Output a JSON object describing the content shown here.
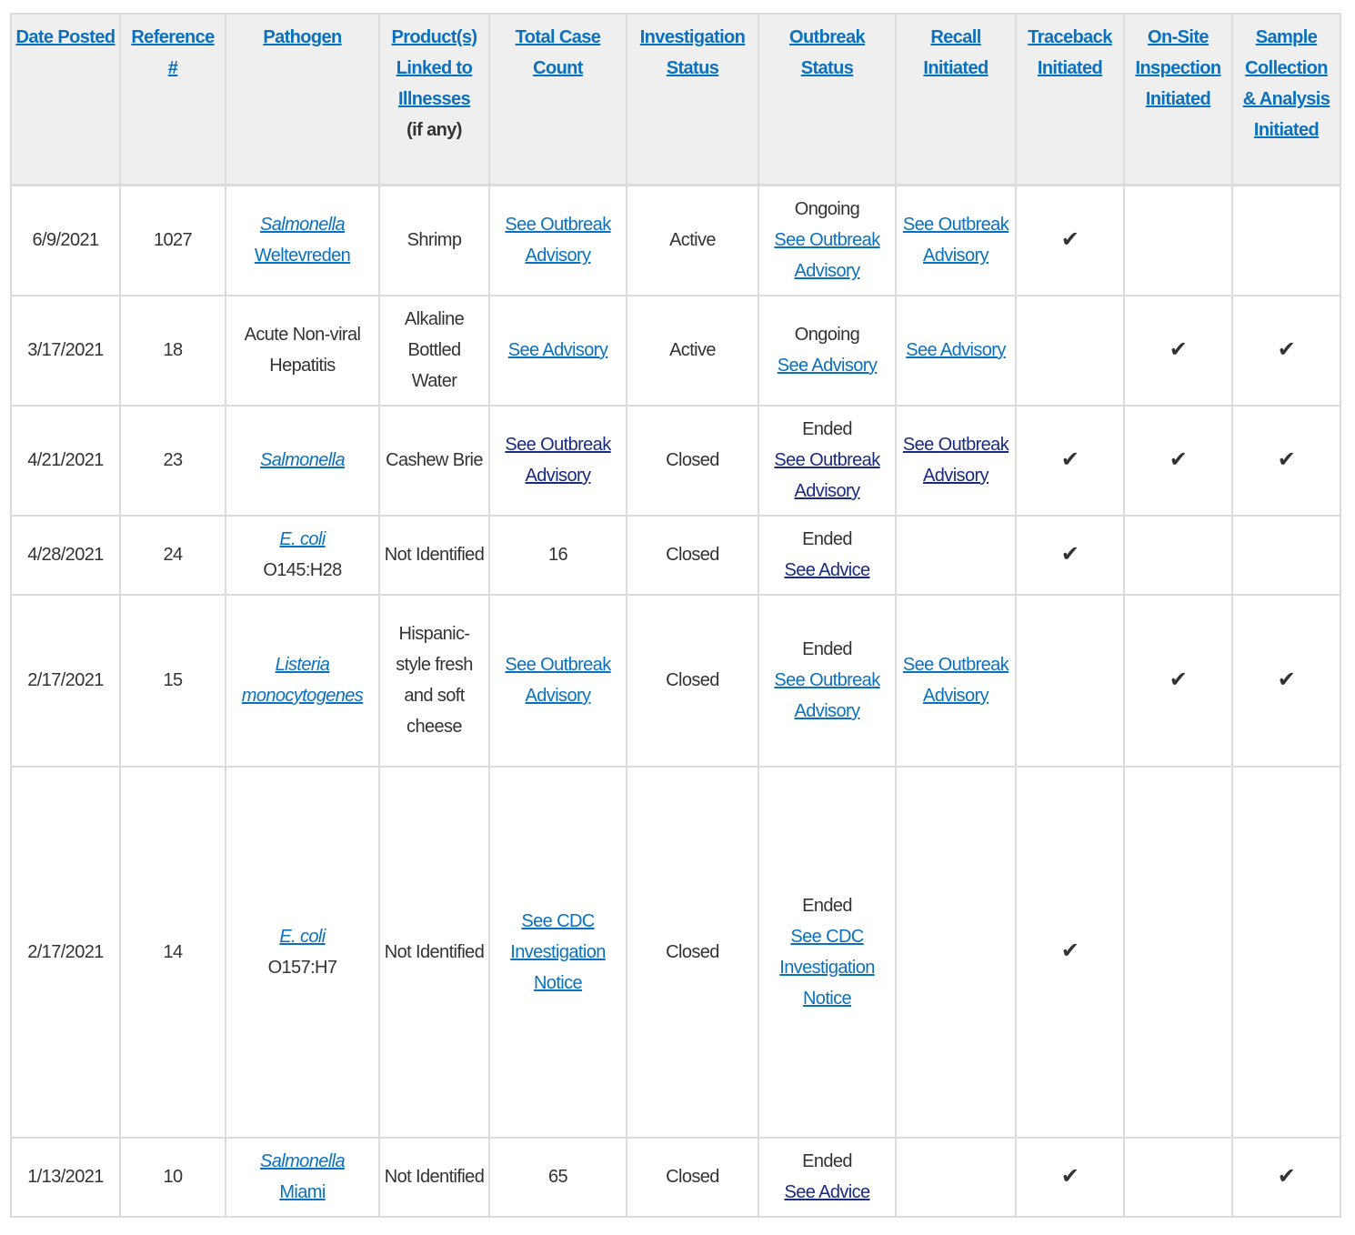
{
  "colors": {
    "link": "#0a71c0",
    "visited_link": "#1a2a80",
    "header_bg": "#efefef",
    "border": "#dcdcdc",
    "text": "#333333"
  },
  "check_icon": "✔",
  "headers": [
    {
      "link": "Date Posted"
    },
    {
      "link": "Reference #"
    },
    {
      "link": "Pathogen"
    },
    {
      "link": "Product(s) Linked to Illnesses",
      "note": "(if any)"
    },
    {
      "link": "Total Case Count"
    },
    {
      "link": "Investigation Status"
    },
    {
      "link": "Outbreak Status"
    },
    {
      "link": "Recall Initiated"
    },
    {
      "link": "Traceback Initiated"
    },
    {
      "link": "On-Site Inspection Initiated"
    },
    {
      "link": "Sample Collection & Analysis Initiated"
    }
  ],
  "rows": [
    {
      "date": "6/9/2021",
      "ref": "1027",
      "pathogen": [
        {
          "text": "Salmonella",
          "link": true,
          "italic": true
        },
        {
          "text": "Weltevreden",
          "link": true
        }
      ],
      "product": [
        {
          "text": "Shrimp"
        }
      ],
      "cases": [
        {
          "text": "See Outbreak Advisory",
          "link": true
        }
      ],
      "investigation": "Active",
      "outbreak": [
        {
          "text": "Ongoing"
        },
        {
          "text": "See Outbreak Advisory",
          "link": true
        }
      ],
      "recall": [
        {
          "text": "See Outbreak Advisory",
          "link": true
        }
      ],
      "traceback": true,
      "inspection": false,
      "sample": false
    },
    {
      "date": "3/17/2021",
      "ref": "18",
      "pathogen": [
        {
          "text": "Acute Non-viral Hepatitis"
        }
      ],
      "product": [
        {
          "text": "Alkaline Bottled Water"
        }
      ],
      "cases": [
        {
          "text": "See Advisory",
          "link": true
        }
      ],
      "investigation": "Active",
      "outbreak": [
        {
          "text": "Ongoing"
        },
        {
          "text": "See Advisory",
          "link": true
        }
      ],
      "recall": [
        {
          "text": "See Advisory",
          "link": true
        }
      ],
      "traceback": false,
      "inspection": true,
      "sample": true
    },
    {
      "date": "4/21/2021",
      "ref": "23",
      "pathogen": [
        {
          "text": "Salmonella",
          "link": true,
          "italic": true
        }
      ],
      "product": [
        {
          "text": "Cashew Brie"
        }
      ],
      "cases": [
        {
          "text": "See Outbreak Advisory",
          "link": true,
          "visited": true
        }
      ],
      "investigation": "Closed",
      "outbreak": [
        {
          "text": "Ended"
        },
        {
          "text": "See Outbreak Advisory",
          "link": true,
          "visited": true
        }
      ],
      "recall": [
        {
          "text": "See Outbreak Advisory",
          "link": true,
          "visited": true
        }
      ],
      "traceback": true,
      "inspection": true,
      "sample": true
    },
    {
      "date": "4/28/2021",
      "ref": "24",
      "pathogen": [
        {
          "text": "E. coli",
          "link": true,
          "italic": true
        },
        {
          "text": "O145:H28"
        }
      ],
      "product": [
        {
          "text": "Not Identified"
        }
      ],
      "cases": [
        {
          "text": "16"
        }
      ],
      "investigation": "Closed",
      "outbreak": [
        {
          "text": "Ended"
        },
        {
          "text": "See Advice",
          "link": true,
          "visited": true
        }
      ],
      "recall": [],
      "traceback": true,
      "inspection": false,
      "sample": false
    },
    {
      "date": "2/17/2021",
      "ref": "15",
      "pathogen": [
        {
          "text": "Listeria monocytogenes",
          "link": true,
          "italic": true
        }
      ],
      "product": [
        {
          "text": "Hispanic-style fresh and soft cheese"
        }
      ],
      "cases": [
        {
          "text": "See Outbreak Advisory",
          "link": true
        }
      ],
      "investigation": "Closed",
      "outbreak": [
        {
          "text": "Ended"
        },
        {
          "text": "See Outbreak Advisory",
          "link": true
        }
      ],
      "recall": [
        {
          "text": "See Outbreak Advisory",
          "link": true
        }
      ],
      "traceback": false,
      "inspection": true,
      "sample": true
    },
    {
      "date": "2/17/2021",
      "ref": "14",
      "pathogen": [
        {
          "text": "E. coli",
          "link": true,
          "italic": true
        },
        {
          "text": "O157:H7"
        }
      ],
      "product": [
        {
          "text": "Not Identified"
        }
      ],
      "cases": [
        {
          "text": "See CDC Investigation Notice",
          "link": true
        }
      ],
      "investigation": "Closed",
      "outbreak": [
        {
          "text": "Ended"
        },
        {
          "text": "See CDC Investigation Notice",
          "link": true
        }
      ],
      "recall": [],
      "traceback": true,
      "inspection": false,
      "sample": false
    },
    {
      "date": "1/13/2021",
      "ref": "10",
      "pathogen": [
        {
          "text": "Salmonella",
          "link": true,
          "italic": true
        },
        {
          "text": "Miami",
          "link": true
        }
      ],
      "product": [
        {
          "text": "Not Identified"
        }
      ],
      "cases": [
        {
          "text": "65"
        }
      ],
      "investigation": "Closed",
      "outbreak": [
        {
          "text": "Ended"
        },
        {
          "text": "See Advice",
          "link": true,
          "visited": true
        }
      ],
      "recall": [],
      "traceback": true,
      "inspection": false,
      "sample": true
    }
  ]
}
